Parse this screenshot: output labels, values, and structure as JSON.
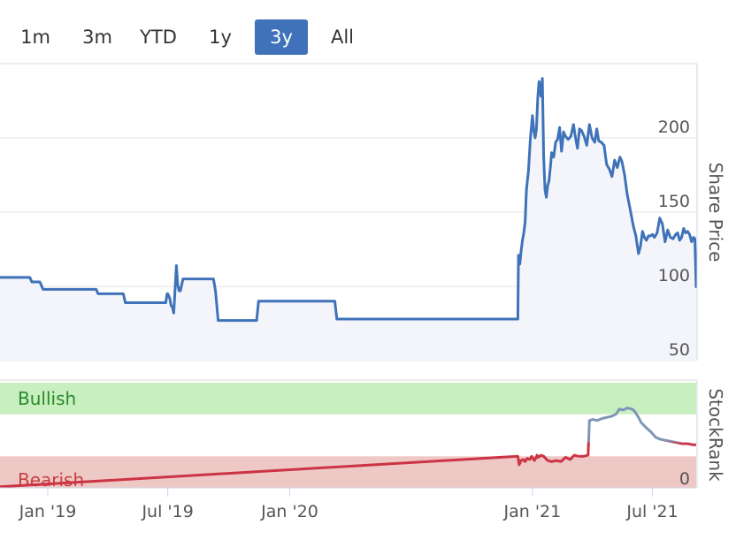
{
  "range_selector": {
    "buttons": [
      {
        "label": "1m",
        "active": false
      },
      {
        "label": "3m",
        "active": false
      },
      {
        "label": "YTD",
        "active": false
      },
      {
        "label": "1y",
        "active": false
      },
      {
        "label": "3y",
        "active": true
      },
      {
        "label": "All",
        "active": false
      }
    ]
  },
  "colors": {
    "price_line": "#3f72b8",
    "price_fill": "#f3f5fa",
    "bullish_band": "#c8efc0",
    "bearish_band": "#eec8c4",
    "bullish_text": "#2a8a2a",
    "bearish_text": "#c84040",
    "rank_high": "#8096b8",
    "rank_low": "#cc3344"
  },
  "chart_data": [
    {
      "type": "line",
      "ylabel": "Share Price",
      "ylim": [
        50,
        250
      ],
      "yticks": [
        "50",
        "100",
        "150",
        "200"
      ],
      "x_range": [
        "2018-10-21",
        "2021-09-05"
      ],
      "xticks": [
        {
          "date": "2019-01-01",
          "label": "Jan '19"
        },
        {
          "date": "2019-07-01",
          "label": "Jul '19"
        },
        {
          "date": "2020-01-01",
          "label": "Jan '20"
        },
        {
          "date": "2021-01-01",
          "label": "Jan '21"
        },
        {
          "date": "2021-07-01",
          "label": "Jul '21"
        }
      ],
      "series": [
        {
          "x": [
            "2018-10-21",
            "2018-12-05",
            "2018-12-08",
            "2018-12-20",
            "2018-12-25",
            "2019-03-15",
            "2019-03-18",
            "2019-04-25",
            "2019-04-28",
            "2019-06-28",
            "2019-06-30",
            "2019-07-01",
            "2019-07-04",
            "2019-07-06",
            "2019-07-08",
            "2019-07-10",
            "2019-07-12",
            "2019-07-14",
            "2019-07-16",
            "2019-07-18",
            "2019-07-20",
            "2019-07-24",
            "2019-07-27",
            "2019-08-02",
            "2019-08-05",
            "2019-09-08",
            "2019-09-11",
            "2019-09-15",
            "2019-11-12",
            "2019-11-15",
            "2020-03-09",
            "2020-03-12",
            "2020-12-10",
            "2020-12-11",
            "2020-12-13",
            "2020-12-15",
            "2020-12-17",
            "2020-12-19",
            "2020-12-21",
            "2020-12-23",
            "2020-12-26",
            "2020-12-29",
            "2021-01-01",
            "2021-01-03",
            "2021-01-05",
            "2021-01-07",
            "2021-01-09",
            "2021-01-11",
            "2021-01-14",
            "2021-01-16",
            "2021-01-18",
            "2021-01-20",
            "2021-01-22",
            "2021-01-24",
            "2021-01-26",
            "2021-01-28",
            "2021-01-30",
            "2021-02-02",
            "2021-02-05",
            "2021-02-08",
            "2021-02-11",
            "2021-02-14",
            "2021-02-17",
            "2021-02-20",
            "2021-02-24",
            "2021-02-28",
            "2021-03-04",
            "2021-03-07",
            "2021-03-10",
            "2021-03-13",
            "2021-03-16",
            "2021-03-20",
            "2021-03-24",
            "2021-03-28",
            "2021-04-01",
            "2021-04-05",
            "2021-04-08",
            "2021-04-11",
            "2021-04-15",
            "2021-04-19",
            "2021-04-23",
            "2021-04-27",
            "2021-05-01",
            "2021-05-05",
            "2021-05-09",
            "2021-05-13",
            "2021-05-16",
            "2021-05-20",
            "2021-05-24",
            "2021-05-28",
            "2021-06-02",
            "2021-06-06",
            "2021-06-10",
            "2021-06-13",
            "2021-06-16",
            "2021-06-19",
            "2021-06-22",
            "2021-06-25",
            "2021-06-28",
            "2021-07-01",
            "2021-07-04",
            "2021-07-08",
            "2021-07-12",
            "2021-07-16",
            "2021-07-20",
            "2021-07-24",
            "2021-07-28",
            "2021-08-01",
            "2021-08-05",
            "2021-08-08",
            "2021-08-11",
            "2021-08-14",
            "2021-08-17",
            "2021-08-20",
            "2021-08-23",
            "2021-08-26",
            "2021-08-29",
            "2021-09-01",
            "2021-09-03",
            "2021-09-05"
          ],
          "values": [
            106,
            106,
            103,
            103,
            98,
            98,
            95,
            95,
            89,
            89,
            95,
            95,
            92,
            87,
            86,
            82,
            98,
            114,
            101,
            97,
            97,
            105,
            105,
            105,
            105,
            105,
            97,
            77,
            77,
            90,
            90,
            78,
            78,
            121,
            115,
            124,
            131,
            136,
            143,
            165,
            178,
            200,
            215,
            205,
            200,
            206,
            227,
            238,
            228,
            240,
            187,
            165,
            160,
            168,
            171,
            180,
            190,
            187,
            197,
            199,
            207,
            191,
            204,
            201,
            199,
            201,
            209,
            200,
            193,
            206,
            205,
            201,
            195,
            209,
            200,
            197,
            206,
            198,
            197,
            195,
            182,
            179,
            174,
            185,
            180,
            187,
            184,
            175,
            162,
            153,
            141,
            134,
            122,
            127,
            137,
            133,
            131,
            134,
            134,
            135,
            133,
            136,
            146,
            142,
            130,
            138,
            133,
            132,
            135,
            136,
            131,
            133,
            139,
            136,
            137,
            135,
            130,
            133,
            132,
            99
          ]
        }
      ]
    },
    {
      "type": "line",
      "ylabel": "StockRank",
      "ylim": [
        0,
        100
      ],
      "yticks": [
        "0"
      ],
      "bands": [
        {
          "label": "Bullish",
          "from": 70,
          "to": 100
        },
        {
          "label": "Bearish",
          "from": 0,
          "to": 30
        }
      ],
      "series": [
        {
          "x": [
            "2018-10-21",
            "2020-12-10",
            "2020-12-12",
            "2020-12-15",
            "2020-12-18",
            "2020-12-21",
            "2020-12-24",
            "2020-12-28",
            "2020-12-31",
            "2021-01-04",
            "2021-01-06",
            "2021-01-08",
            "2021-01-10",
            "2021-01-14",
            "2021-01-18",
            "2021-01-24",
            "2021-01-30",
            "2021-02-06",
            "2021-02-13",
            "2021-02-20",
            "2021-02-27",
            "2021-03-05",
            "2021-03-12",
            "2021-03-19",
            "2021-03-26",
            "2021-03-28",
            "2021-04-02",
            "2021-04-09",
            "2021-04-16",
            "2021-04-23",
            "2021-04-30",
            "2021-05-07",
            "2021-05-12",
            "2021-05-18",
            "2021-05-24",
            "2021-05-31",
            "2021-06-04",
            "2021-06-10",
            "2021-06-14",
            "2021-06-22",
            "2021-06-29",
            "2021-07-06",
            "2021-07-14",
            "2021-07-22",
            "2021-07-30",
            "2021-08-07",
            "2021-08-15",
            "2021-08-23",
            "2021-08-31",
            "2021-09-05"
          ],
          "values": [
            1,
            30,
            22,
            26,
            27,
            25,
            28,
            27,
            30,
            26,
            28,
            31,
            29,
            31,
            30,
            26,
            25,
            26,
            25,
            29,
            27,
            31,
            30,
            30,
            31,
            64,
            65,
            64,
            66,
            67,
            68,
            70,
            75,
            74,
            76,
            75,
            73,
            67,
            62,
            57,
            53,
            48,
            46,
            45,
            44,
            43,
            42,
            42,
            41,
            41
          ]
        }
      ]
    }
  ]
}
